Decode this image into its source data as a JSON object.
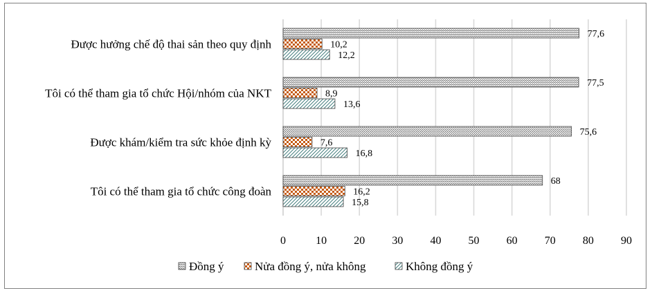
{
  "chart_data": {
    "type": "bar",
    "orientation": "horizontal",
    "categories": [
      "Được hưởng chế độ thai sản theo quy định",
      "Tôi có thể tham gia tổ chức Hội/nhóm của NKT",
      "Được khám/kiểm tra sức khỏe định kỳ",
      "Tôi có thể tham gia tổ chức công đoàn"
    ],
    "series": [
      {
        "name": "Đồng ý",
        "values": [
          77.6,
          77.5,
          75.6,
          68
        ],
        "labels": [
          "77,6",
          "77,5",
          "75,6",
          "68"
        ],
        "pattern": "zigzag",
        "color": "#7f7f7f"
      },
      {
        "name": "Nửa đồng ý, nửa không",
        "values": [
          10.2,
          8.9,
          7.6,
          16.2
        ],
        "labels": [
          "10,2",
          "8,9",
          "7,6",
          "16,2"
        ],
        "pattern": "checker",
        "color": "#c55a11"
      },
      {
        "name": "Không đồng ý",
        "values": [
          12.2,
          13.6,
          16.8,
          15.8
        ],
        "labels": [
          "12,2",
          "13,6",
          "16,8",
          "15,8"
        ],
        "pattern": "diagonal",
        "color": "#2f6f6f"
      }
    ],
    "xlim": [
      0,
      90
    ],
    "xticks": [
      0,
      10,
      20,
      30,
      40,
      50,
      60,
      70,
      80,
      90
    ],
    "grid": true,
    "legend": "bottom"
  }
}
